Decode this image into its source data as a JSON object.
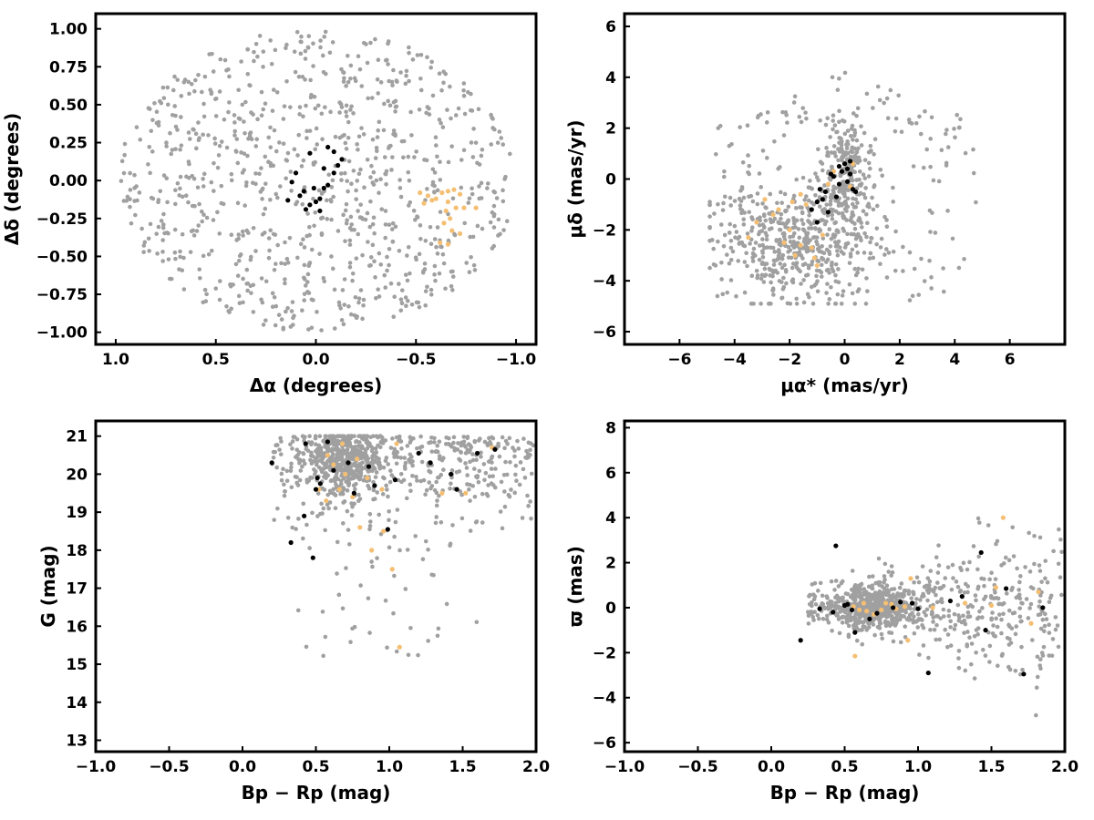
{
  "colors": {
    "background": "#7f7f7f",
    "cluster_a": "#000000",
    "cluster_b": "#f5bf73",
    "axes": "#000000",
    "field": "#a0a0a0"
  },
  "chart_data": [
    {
      "id": "sky",
      "type": "scatter",
      "xlabel": "Δα (degrees)",
      "ylabel": "Δδ (degrees)",
      "xlim": [
        1.1,
        -1.1
      ],
      "ylim": [
        -1.08,
        1.1
      ],
      "x_ticks": [
        1.0,
        0.5,
        0.0,
        -0.5,
        -1.0
      ],
      "x_tick_labels": [
        "1.0",
        "0.5",
        "0.0",
        "−0.5",
        "−1.0"
      ],
      "y_ticks": [
        -1.0,
        -0.75,
        -0.5,
        -0.25,
        0.0,
        0.25,
        0.5,
        0.75,
        1.0
      ],
      "y_tick_labels": [
        "−1.00",
        "−0.75",
        "−0.50",
        "−0.25",
        "0.00",
        "0.25",
        "0.50",
        "0.75",
        "1.00"
      ],
      "background": {
        "shape": "disk",
        "cx": 0.0,
        "cy": 0.0,
        "rx": 1.0,
        "ry": 1.0,
        "count": 900
      },
      "series": [
        {
          "role": "cluster_a",
          "points": [
            [
              -0.09,
              0.19
            ],
            [
              -0.13,
              0.14
            ],
            [
              -0.11,
              0.1
            ],
            [
              -0.06,
              0.22
            ],
            [
              0.03,
              0.18
            ],
            [
              -0.04,
              0.08
            ],
            [
              -0.09,
              0.05
            ],
            [
              0.1,
              0.05
            ],
            [
              0.12,
              -0.01
            ],
            [
              0.01,
              -0.05
            ],
            [
              -0.04,
              -0.05
            ],
            [
              0.06,
              -0.07
            ],
            [
              -0.02,
              -0.12
            ],
            [
              0.0,
              -0.14
            ],
            [
              0.03,
              -0.16
            ],
            [
              0.08,
              -0.1
            ],
            [
              0.14,
              -0.13
            ],
            [
              -0.06,
              -0.03
            ],
            [
              -0.02,
              -0.2
            ],
            [
              0.05,
              -0.19
            ]
          ]
        },
        {
          "role": "cluster_b",
          "points": [
            [
              -0.52,
              -0.08
            ],
            [
              -0.56,
              -0.1
            ],
            [
              -0.6,
              -0.12
            ],
            [
              -0.63,
              -0.08
            ],
            [
              -0.66,
              -0.07
            ],
            [
              -0.69,
              -0.06
            ],
            [
              -0.72,
              -0.09
            ],
            [
              -0.66,
              -0.14
            ],
            [
              -0.7,
              -0.18
            ],
            [
              -0.65,
              -0.2
            ],
            [
              -0.67,
              -0.25
            ],
            [
              -0.64,
              -0.28
            ],
            [
              -0.68,
              -0.33
            ],
            [
              -0.62,
              -0.41
            ],
            [
              -0.66,
              -0.42
            ],
            [
              -0.74,
              -0.18
            ],
            [
              -0.8,
              -0.18
            ],
            [
              -0.58,
              -0.13
            ],
            [
              -0.54,
              -0.15
            ],
            [
              -0.72,
              -0.35
            ]
          ]
        }
      ]
    },
    {
      "id": "proper-motion",
      "type": "scatter",
      "xlabel": "μα* (mas/yr)",
      "ylabel": "μδ (mas/yr)",
      "xlim": [
        -8.0,
        8.0
      ],
      "ylim": [
        -6.5,
        6.5
      ],
      "x_ticks": [
        -6,
        -4,
        -2,
        0,
        2,
        4,
        6
      ],
      "x_tick_labels": [
        "−6",
        "−4",
        "−2",
        "0",
        "2",
        "4",
        "6"
      ],
      "y_ticks": [
        -6,
        -4,
        -2,
        0,
        2,
        4,
        6
      ],
      "y_tick_labels": [
        "−6",
        "−4",
        "−2",
        "0",
        "2",
        "4",
        "6"
      ],
      "background": {
        "shape": "fan",
        "center": [
          -1.6,
          -2.4
        ],
        "spread": [
          1.5,
          1.2
        ],
        "core": [
          0.0,
          0.3
        ],
        "count": 900
      },
      "series": [
        {
          "role": "cluster_a",
          "points": [
            [
              -0.2,
              0.5
            ],
            [
              -0.1,
              0.3
            ],
            [
              0.1,
              0.4
            ],
            [
              0.2,
              0.2
            ],
            [
              -0.4,
              0.1
            ],
            [
              -0.5,
              0.2
            ],
            [
              0.4,
              -0.5
            ],
            [
              0.3,
              -0.4
            ],
            [
              -0.9,
              -0.4
            ],
            [
              -1.0,
              -0.9
            ],
            [
              -0.8,
              -0.8
            ],
            [
              -0.6,
              -1.3
            ],
            [
              -1.2,
              -1.2
            ],
            [
              -1.0,
              -1.7
            ],
            [
              0.0,
              0.6
            ],
            [
              0.2,
              0.7
            ],
            [
              -0.3,
              -0.7
            ],
            [
              0.1,
              -0.1
            ],
            [
              -0.2,
              -0.2
            ],
            [
              -0.7,
              -0.5
            ]
          ]
        },
        {
          "role": "cluster_b",
          "points": [
            [
              -3.2,
              -1.7
            ],
            [
              -3.5,
              -2.3
            ],
            [
              -2.6,
              -1.4
            ],
            [
              -2.0,
              -2.0
            ],
            [
              -1.6,
              -2.6
            ],
            [
              -1.2,
              -2.7
            ],
            [
              -1.1,
              -3.1
            ],
            [
              -1.0,
              -3.4
            ],
            [
              -1.4,
              -1.0
            ],
            [
              -1.6,
              -0.6
            ],
            [
              -0.6,
              -0.2
            ],
            [
              -0.4,
              0.3
            ],
            [
              -2.4,
              -1.2
            ],
            [
              -2.9,
              -0.8
            ],
            [
              0.2,
              -0.3
            ],
            [
              0.3,
              0.6
            ],
            [
              -0.8,
              -2.2
            ],
            [
              -1.9,
              -0.9
            ],
            [
              -2.2,
              -2.5
            ],
            [
              -1.8,
              -3.0
            ]
          ]
        }
      ]
    },
    {
      "id": "cmd",
      "type": "scatter",
      "xlabel": "Bp − Rp (mag)",
      "ylabel": "G (mag)",
      "xlim": [
        -1.0,
        2.0
      ],
      "ylim": [
        12.7,
        21.4
      ],
      "x_ticks": [
        -1.0,
        -0.5,
        0.0,
        0.5,
        1.0,
        1.5,
        2.0
      ],
      "x_tick_labels": [
        "−1.0",
        "−0.5",
        "0.0",
        "0.5",
        "1.0",
        "1.5",
        "2.0"
      ],
      "y_ticks": [
        13,
        14,
        15,
        16,
        17,
        18,
        19,
        20,
        21
      ],
      "y_tick_labels": [
        "13",
        "14",
        "15",
        "16",
        "17",
        "18",
        "19",
        "20",
        "21"
      ],
      "background": {
        "shape": "cmd",
        "core": [
          0.7,
          20.4
        ],
        "count": 950
      },
      "series": [
        {
          "role": "cluster_a",
          "points": [
            [
              0.2,
              20.3
            ],
            [
              0.43,
              20.8
            ],
            [
              0.58,
              20.85
            ],
            [
              0.62,
              20.1
            ],
            [
              0.72,
              20.3
            ],
            [
              0.51,
              19.9
            ],
            [
              0.5,
              19.6
            ],
            [
              0.53,
              19.75
            ],
            [
              0.86,
              20.2
            ],
            [
              0.76,
              19.5
            ],
            [
              0.9,
              19.7
            ],
            [
              1.04,
              19.85
            ],
            [
              0.42,
              18.9
            ],
            [
              0.99,
              18.55
            ],
            [
              0.33,
              18.2
            ],
            [
              0.48,
              17.8
            ],
            [
              1.2,
              20.55
            ],
            [
              1.28,
              20.3
            ],
            [
              1.42,
              20.0
            ],
            [
              1.46,
              19.6
            ],
            [
              1.6,
              20.55
            ],
            [
              1.72,
              20.65
            ]
          ]
        },
        {
          "role": "cluster_b",
          "points": [
            [
              0.62,
              20.25
            ],
            [
              0.7,
              20.0
            ],
            [
              0.66,
              19.6
            ],
            [
              0.57,
              19.3
            ],
            [
              0.75,
              19.4
            ],
            [
              0.85,
              19.9
            ],
            [
              0.58,
              20.5
            ],
            [
              0.95,
              19.6
            ],
            [
              0.8,
              18.6
            ],
            [
              0.88,
              18.0
            ],
            [
              1.02,
              17.5
            ],
            [
              1.07,
              15.45
            ],
            [
              0.96,
              18.5
            ],
            [
              1.05,
              20.8
            ],
            [
              1.36,
              19.5
            ],
            [
              1.52,
              19.5
            ],
            [
              1.7,
              20.7
            ],
            [
              0.52,
              19.6
            ],
            [
              0.68,
              20.8
            ],
            [
              0.78,
              20.4
            ]
          ]
        }
      ]
    },
    {
      "id": "parallax",
      "type": "scatter",
      "xlabel": "Bp − Rp (mag)",
      "ylabel": "ϖ (mas)",
      "xlim": [
        -1.0,
        2.0
      ],
      "ylim": [
        -6.4,
        8.3
      ],
      "x_ticks": [
        -1.0,
        -0.5,
        0.0,
        0.5,
        1.0,
        1.5,
        2.0
      ],
      "x_tick_labels": [
        "−1.0",
        "−0.5",
        "0.0",
        "0.5",
        "1.0",
        "1.5",
        "2.0"
      ],
      "y_ticks": [
        -6,
        -4,
        -2,
        0,
        2,
        4,
        6,
        8
      ],
      "y_tick_labels": [
        "−6",
        "−4",
        "−2",
        "0",
        "2",
        "4",
        "6",
        "8"
      ],
      "background": {
        "shape": "parallax",
        "core": [
          0.7,
          0.0
        ],
        "count": 950
      },
      "series": [
        {
          "role": "cluster_a",
          "points": [
            [
              0.44,
              2.75
            ],
            [
              0.2,
              -1.45
            ],
            [
              0.33,
              -0.05
            ],
            [
              0.42,
              -0.2
            ],
            [
              0.5,
              0.1
            ],
            [
              0.52,
              0.15
            ],
            [
              0.55,
              -0.1
            ],
            [
              0.57,
              -1.1
            ],
            [
              0.72,
              -0.25
            ],
            [
              0.83,
              0.0
            ],
            [
              0.88,
              0.25
            ],
            [
              0.96,
              0.2
            ],
            [
              1.07,
              -2.9
            ],
            [
              1.22,
              0.3
            ],
            [
              1.3,
              0.5
            ],
            [
              1.43,
              2.45
            ],
            [
              1.46,
              -1.0
            ],
            [
              1.6,
              0.85
            ],
            [
              1.72,
              -2.95
            ],
            [
              1.85,
              0.0
            ],
            [
              0.67,
              -0.5
            ],
            [
              1.0,
              -0.05
            ]
          ]
        },
        {
          "role": "cluster_b",
          "points": [
            [
              0.56,
              0.05
            ],
            [
              0.6,
              -0.1
            ],
            [
              0.63,
              0.2
            ],
            [
              0.65,
              -0.15
            ],
            [
              0.75,
              -0.1
            ],
            [
              0.78,
              0.2
            ],
            [
              0.85,
              -0.05
            ],
            [
              0.91,
              0.05
            ],
            [
              0.95,
              1.3
            ],
            [
              0.57,
              -2.15
            ],
            [
              0.93,
              -1.45
            ],
            [
              1.1,
              0.0
            ],
            [
              1.32,
              0.2
            ],
            [
              1.5,
              0.1
            ],
            [
              1.53,
              0.9
            ],
            [
              1.58,
              4.0
            ],
            [
              1.77,
              -0.7
            ],
            [
              1.82,
              0.7
            ],
            [
              0.7,
              -0.3
            ],
            [
              0.82,
              0.15
            ]
          ]
        }
      ]
    }
  ]
}
